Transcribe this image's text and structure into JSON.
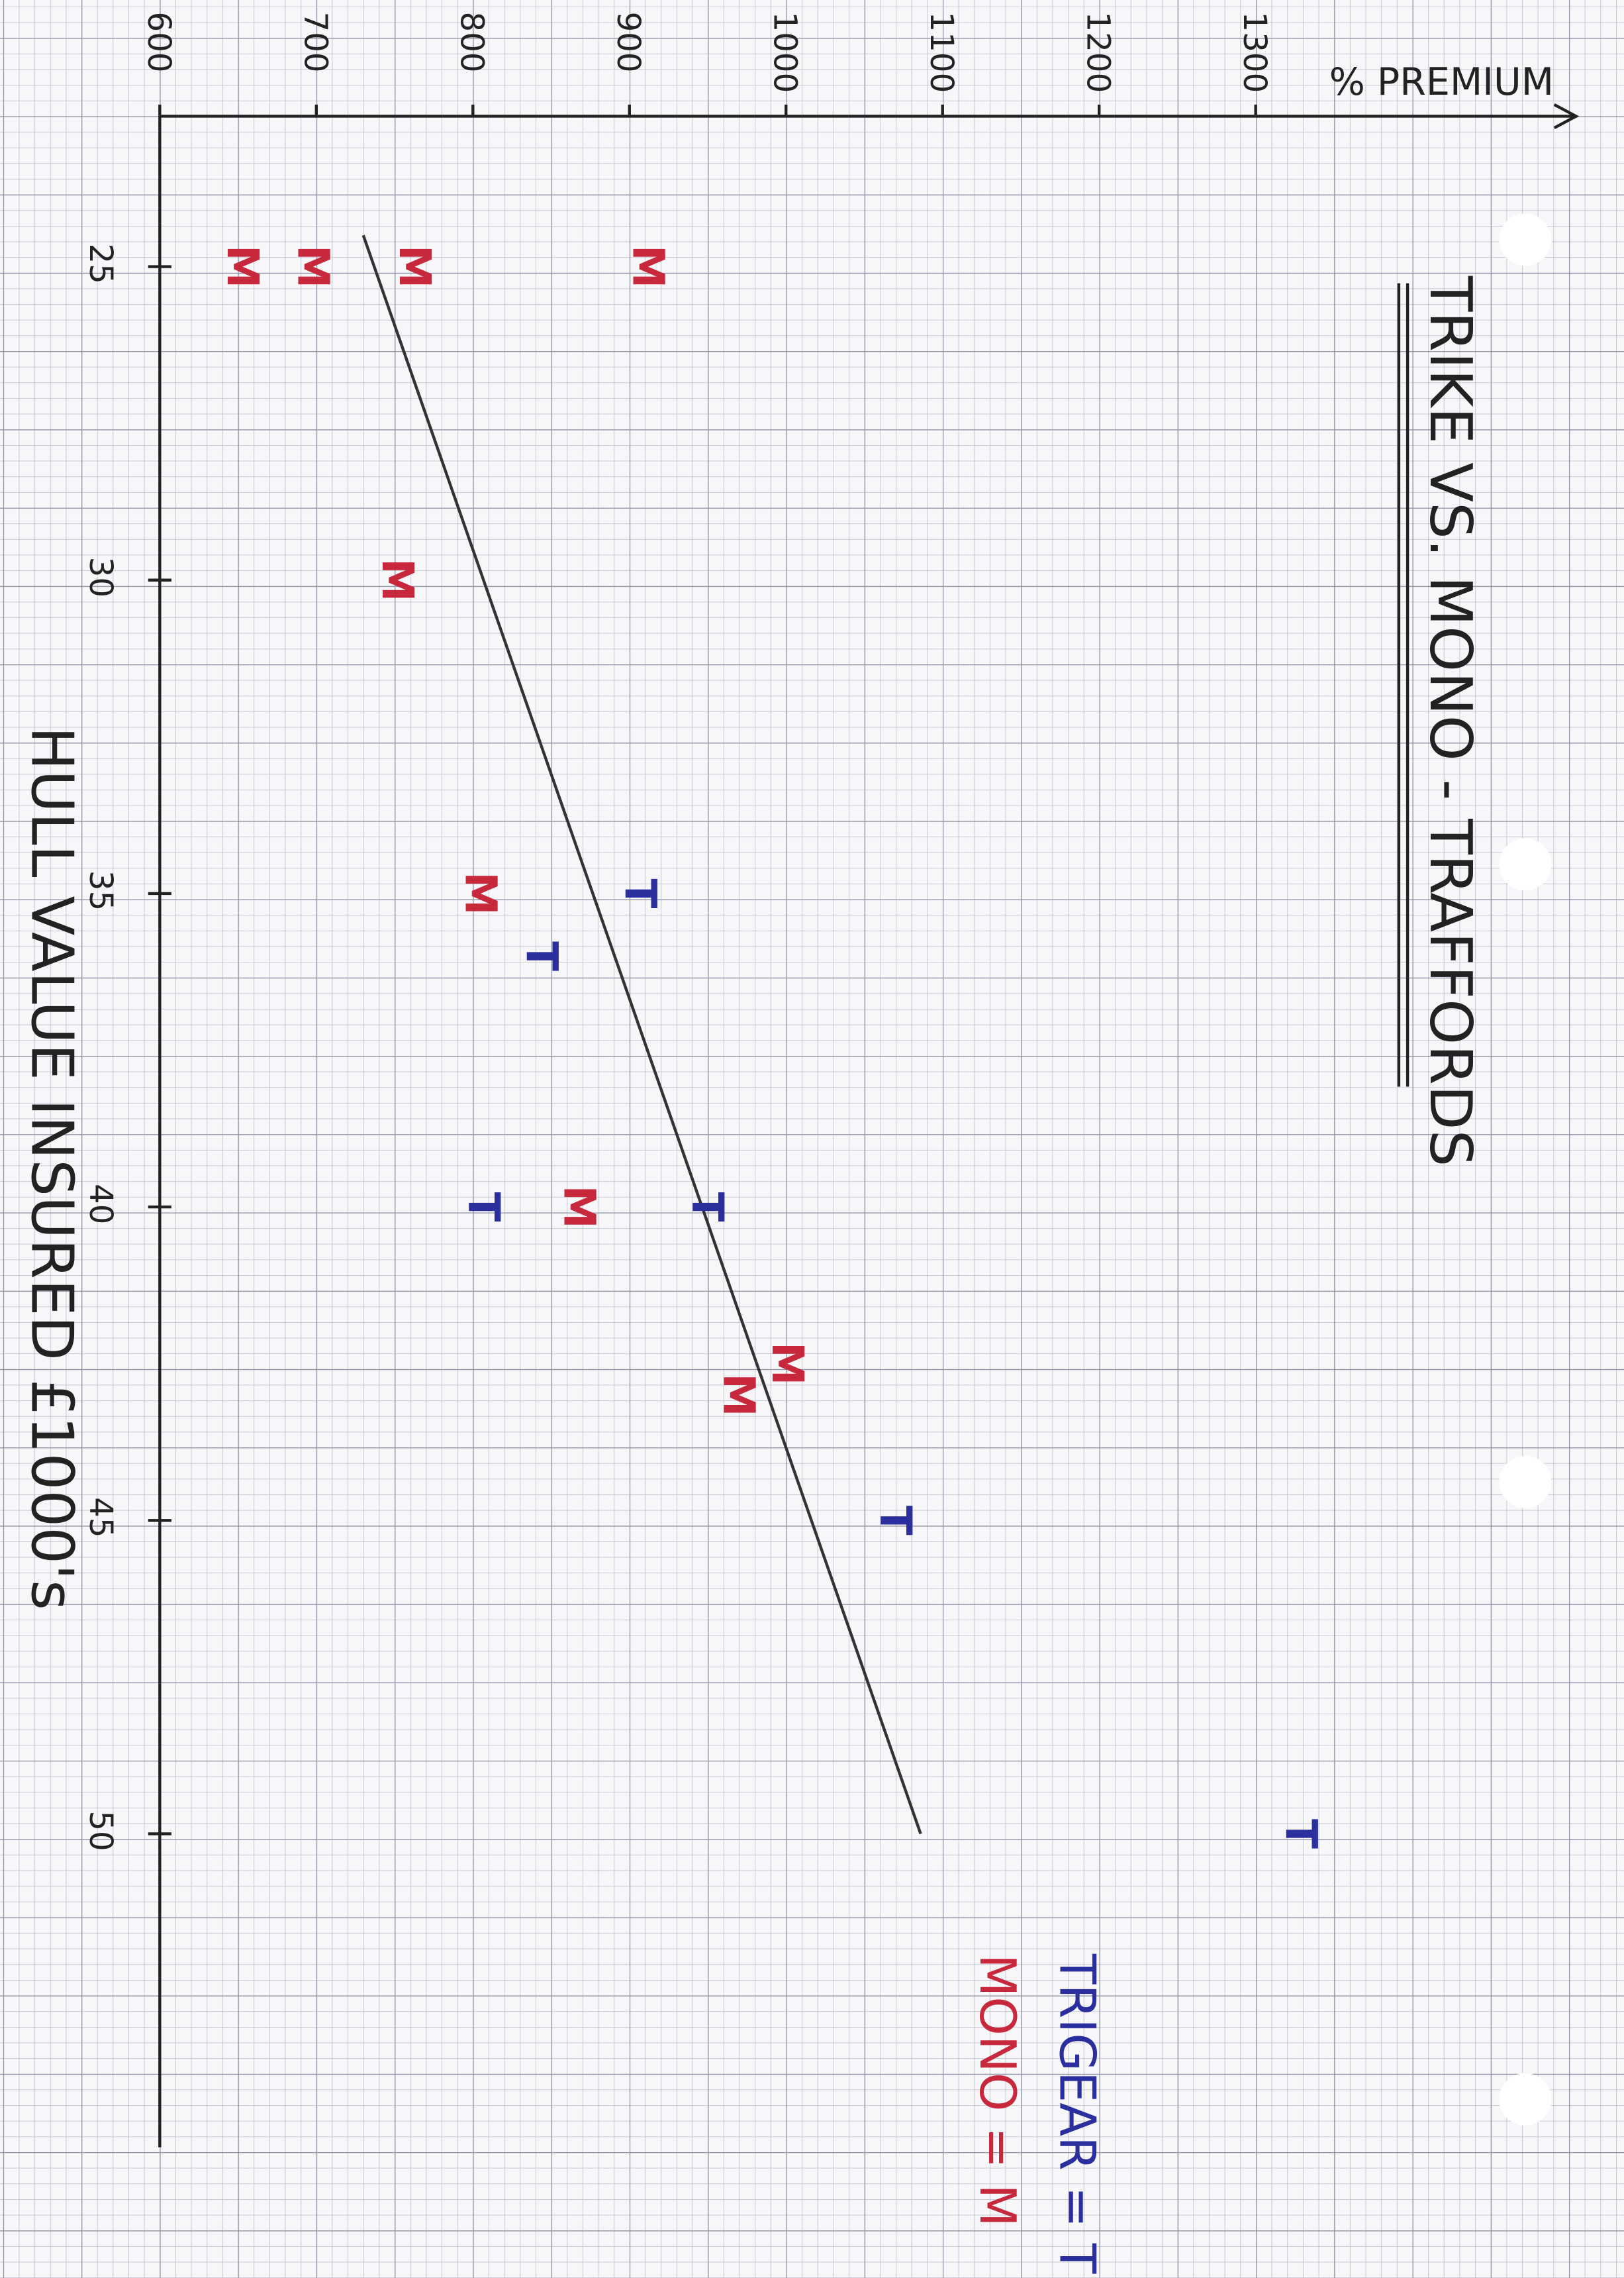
{
  "chart_data": {
    "type": "scatter",
    "title": "TRIKE VS. MONO - TRAFFORDS",
    "x_label": "HULL VALUE INSURED £1000's",
    "y_label": "% PREMIUM",
    "xlim": [
      22.6,
      55
    ],
    "ylim": [
      600,
      1500
    ],
    "xticks": [
      25,
      30,
      35,
      40,
      45,
      50
    ],
    "yticks": [
      600,
      700,
      800,
      900,
      1000,
      1100,
      1200,
      1300
    ],
    "grid": true,
    "series": [
      {
        "name": "TRIGEAR = T",
        "marker": "T",
        "color": "#2b2f9e",
        "x": [
          35,
          36,
          40,
          40,
          45,
          50
        ],
        "values": [
          905,
          842,
          805,
          948,
          1068,
          1327
        ]
      },
      {
        "name": "MONO = M",
        "marker": "M",
        "color": "#c8283c",
        "x": [
          25,
          25,
          25,
          25,
          30,
          35,
          40,
          42.5,
          43
        ],
        "values": [
          651,
          696,
          761,
          910,
          750,
          803,
          866,
          999,
          968
        ]
      }
    ],
    "trend_line": {
      "x": [
        24.5,
        50
      ],
      "values": [
        730,
        1086
      ],
      "color": "#333333"
    }
  }
}
